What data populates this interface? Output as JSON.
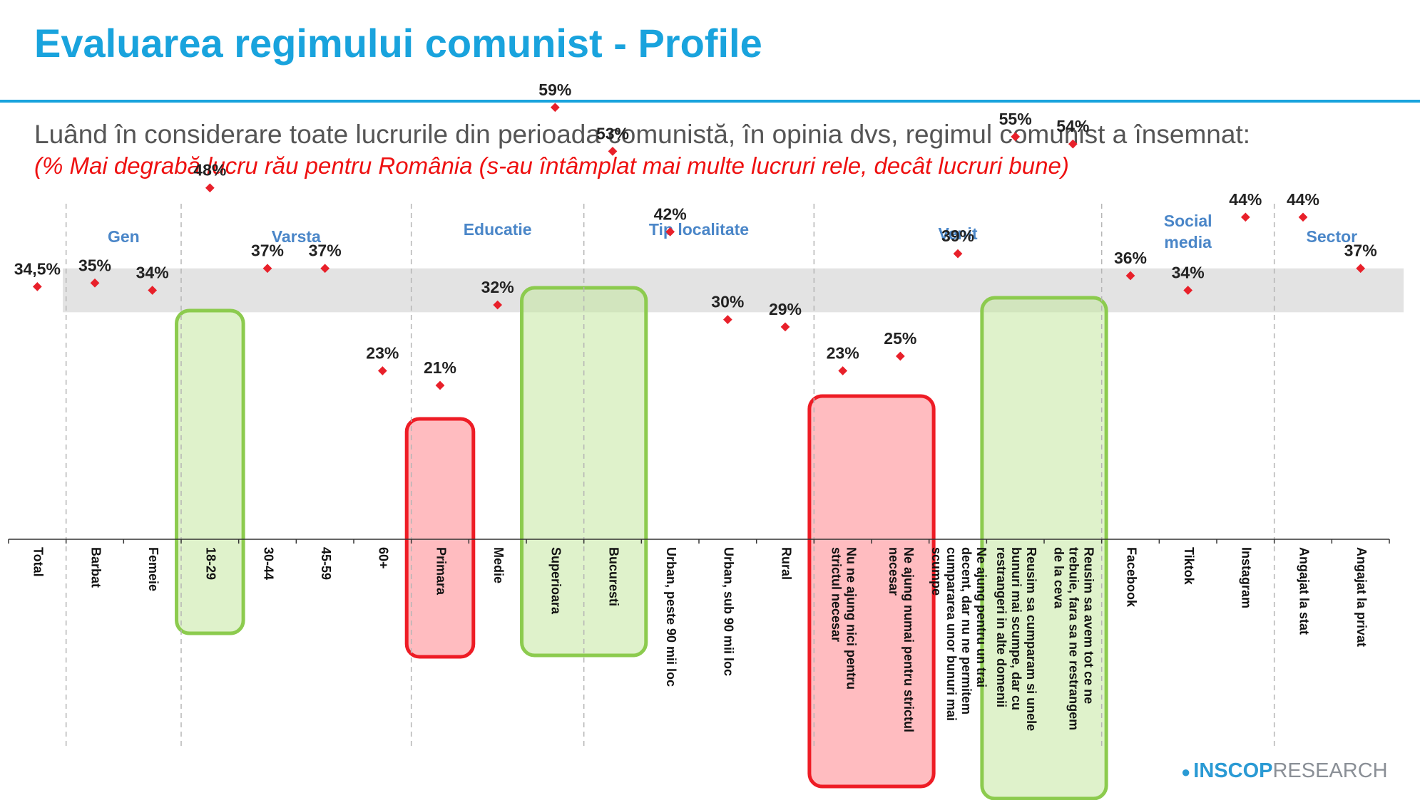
{
  "header": {
    "title": "Evaluarea regimului comunist - Profile",
    "question": "Luând în considerare toate lucrurile din perioada comunistă, în opinia dvs, regimul comunist a însemnat:",
    "subquestion": "(% Mai degrabă lucru rău pentru România (s-au întâmplat mai multe lucruri rele, decât lucruri bune)"
  },
  "logo": {
    "strong": "INSCOP",
    "light": "RESEARCH"
  },
  "colors": {
    "accent": "#19a3dd",
    "group_label": "#4a86c8",
    "point": "#e8202a",
    "green": "#8ccb4e",
    "red": "#ee1c25",
    "band": "#e3e3e3"
  },
  "chart_data": {
    "type": "scatter",
    "groups": [
      {
        "name": "",
        "categories": [
          0
        ]
      },
      {
        "name": "Gen",
        "categories": [
          1,
          2
        ]
      },
      {
        "name": "Varsta",
        "categories": [
          3,
          4,
          5,
          6
        ]
      },
      {
        "name": "Educatie",
        "categories": [
          7,
          8,
          9
        ]
      },
      {
        "name": "Tip localitate",
        "categories": [
          10,
          11,
          12,
          13
        ]
      },
      {
        "name": "Venit",
        "categories": [
          14,
          15,
          16,
          17,
          18
        ]
      },
      {
        "name": "Social media",
        "categories": [
          19,
          20,
          21
        ]
      },
      {
        "name": "Sector",
        "categories": [
          22,
          23
        ]
      }
    ],
    "categories": [
      "Total",
      "Barbat",
      "Femeie",
      "18-29",
      "30-44",
      "45-59",
      "60+",
      "Primara",
      "Medie",
      "Superioara",
      "Bucuresti",
      "Urban, peste 90 mii loc",
      "Urban, sub 90 mii loc",
      "Rural",
      "Nu ne ajung nici pentru strictul necesar",
      "Ne ajung numai pentru strictul necesar",
      "Ne ajung pentru un trai decent, dar nu ne permitem cumpararea unor bunuri mai scumpe",
      "Reusim sa cumparam si unele bunuri mai scumpe, dar cu restrangeri in alte domenii",
      "Reusim sa avem tot ce ne trebuie, fara sa ne restrangem de la ceva",
      "Facebook",
      "Tiktok",
      "Instagram",
      "Angajat la stat",
      "Angajat la privat"
    ],
    "values": [
      34.5,
      35,
      34,
      48,
      37,
      37,
      23,
      21,
      32,
      59,
      53,
      42,
      30,
      29,
      23,
      25,
      39,
      55,
      54,
      36,
      34,
      44,
      44,
      37
    ],
    "value_labels": [
      "34,5%",
      "35%",
      "34%",
      "48%",
      "37%",
      "37%",
      "23%",
      "21%",
      "32%",
      "59%",
      "53%",
      "42%",
      "30%",
      "29%",
      "23%",
      "25%",
      "39%",
      "55%",
      "54%",
      "36%",
      "34%",
      "44%",
      "44%",
      "37%"
    ],
    "reference_band": [
      31,
      37
    ],
    "highlights": [
      {
        "color": "green",
        "categories": [
          3
        ]
      },
      {
        "color": "red",
        "categories": [
          7
        ]
      },
      {
        "color": "green",
        "categories": [
          9,
          10
        ]
      },
      {
        "color": "red",
        "categories": [
          14,
          15
        ]
      },
      {
        "color": "green",
        "categories": [
          17,
          18
        ]
      }
    ],
    "title": "",
    "xlabel": "",
    "ylabel": ""
  }
}
